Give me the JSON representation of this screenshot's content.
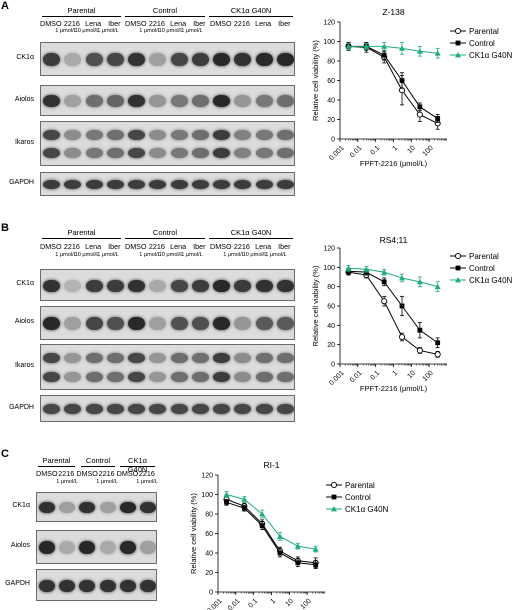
{
  "panels": [
    {
      "letter": "A",
      "groups": [
        "Parental",
        "Control",
        "CK1α G40N"
      ],
      "lanes": [
        "DMSO",
        "2216",
        "Lena",
        "Iber",
        "DMSO",
        "2216",
        "Lena",
        "Iber",
        "DMSO",
        "2216",
        "Lena",
        "Iber"
      ],
      "conc": [
        "1 μmol/L",
        "10 μmol/L",
        "1 μmol/L",
        "1 μmol/L",
        "10 μmol/L",
        "1 μmol/L"
      ],
      "blots": [
        "CK1α",
        "Aiolos",
        "Ikaros",
        "GAPDH"
      ],
      "band_levels": [
        [
          0.85,
          0.3,
          0.75,
          0.8,
          0.9,
          0.35,
          0.8,
          0.85,
          0.95,
          0.9,
          0.95,
          0.95
        ],
        [
          0.9,
          0.35,
          0.6,
          0.65,
          0.9,
          0.4,
          0.55,
          0.6,
          0.95,
          0.4,
          0.55,
          0.6
        ],
        [
          0.8,
          0.45,
          0.55,
          0.6,
          0.8,
          0.45,
          0.55,
          0.6,
          0.85,
          0.5,
          0.55,
          0.6
        ],
        [
          0.85,
          0.85,
          0.85,
          0.85,
          0.85,
          0.85,
          0.85,
          0.85,
          0.85,
          0.85,
          0.85,
          0.85
        ]
      ]
    },
    {
      "letter": "B",
      "groups": [
        "Parental",
        "Control",
        "CK1α G40N"
      ],
      "lanes": [
        "DMSO",
        "2216",
        "Lena",
        "Iber",
        "DMSO",
        "2216",
        "Lena",
        "Iber",
        "DMSO",
        "2216",
        "Lena",
        "Iber"
      ],
      "conc": [
        "1 μmol/L",
        "10 μmol/L",
        "1 μmol/L",
        "1 μmol/L",
        "10 μmol/L",
        "1 μmol/L",
        "1 μmol/L",
        "10 μmol/L",
        "1 μmol/L"
      ],
      "blots": [
        "CK1α",
        "Aiolos",
        "Ikaros",
        "GAPDH"
      ],
      "band_levels": [
        [
          0.9,
          0.25,
          0.85,
          0.85,
          0.9,
          0.3,
          0.8,
          0.85,
          0.95,
          0.85,
          0.9,
          0.9
        ],
        [
          0.95,
          0.35,
          0.8,
          0.75,
          0.95,
          0.35,
          0.75,
          0.75,
          0.95,
          0.4,
          0.7,
          0.7
        ],
        [
          0.8,
          0.4,
          0.6,
          0.6,
          0.8,
          0.4,
          0.6,
          0.6,
          0.85,
          0.45,
          0.6,
          0.6
        ],
        [
          0.8,
          0.8,
          0.8,
          0.8,
          0.8,
          0.8,
          0.8,
          0.8,
          0.8,
          0.8,
          0.8,
          0.8
        ]
      ]
    },
    {
      "letter": "C",
      "groups": [
        "Parental",
        "Control",
        "CK1α G40N"
      ],
      "lanes": [
        "DMSO",
        "2216",
        "DMSO",
        "2216",
        "DMSO",
        "2216"
      ],
      "conc": [
        "1 μmol/L",
        "1 μmol/L",
        "1 μmol/L"
      ],
      "blots": [
        "CK1α",
        "Aiolos",
        "GAPDH"
      ],
      "band_levels": [
        [
          0.9,
          0.35,
          0.9,
          0.35,
          0.95,
          0.9
        ],
        [
          0.95,
          0.3,
          0.95,
          0.3,
          0.95,
          0.35
        ],
        [
          0.9,
          0.9,
          0.9,
          0.9,
          0.9,
          0.9
        ]
      ]
    }
  ],
  "chart_data": [
    {
      "type": "line",
      "title": "Z-138",
      "xlabel": "FPFT-2216 (μmol/L)",
      "ylabel": "Relative cell viability (%)",
      "xscale": "log",
      "x": [
        0.001,
        0.01,
        0.1,
        1,
        10,
        100
      ],
      "x_ticks": [
        "0.001",
        "0.01",
        "0.1",
        "1",
        "10",
        "100"
      ],
      "y_ticks": [
        "0",
        "20",
        "40",
        "60",
        "80",
        "100",
        "120"
      ],
      "ylim": [
        0,
        120
      ],
      "legend_position": "right",
      "points_x": [
        0.003,
        0.03,
        0.3,
        3,
        30,
        300
      ],
      "series": [
        {
          "name": "Parental",
          "marker": "open-circle",
          "color": "#000000",
          "values": [
            95,
            94,
            84,
            50,
            25,
            16
          ],
          "errors": [
            4,
            5,
            6,
            15,
            7,
            6
          ]
        },
        {
          "name": "Control",
          "marker": "filled-square",
          "color": "#000000",
          "values": [
            95,
            95,
            86,
            60,
            33,
            21
          ],
          "errors": [
            3,
            4,
            5,
            8,
            4,
            4
          ]
        },
        {
          "name": "CK1α G40N",
          "marker": "filled-triangle",
          "color": "#1fae7a",
          "values": [
            95,
            95,
            95,
            93,
            90,
            88
          ],
          "errors": [
            3,
            3,
            4,
            6,
            5,
            5
          ]
        }
      ]
    },
    {
      "type": "line",
      "title": "RS4;11",
      "xlabel": "FPFT-2216 (μmol/L)",
      "ylabel": "Relative cell viability (%)",
      "xscale": "log",
      "x": [
        0.001,
        0.01,
        0.1,
        1,
        10,
        100
      ],
      "x_ticks": [
        "0.001",
        "0.01",
        "0.1",
        "1",
        "10",
        "100"
      ],
      "y_ticks": [
        "0",
        "20",
        "40",
        "60",
        "80",
        "100",
        "120"
      ],
      "ylim": [
        0,
        120
      ],
      "legend_position": "right",
      "points_x": [
        0.003,
        0.03,
        0.3,
        3,
        30,
        300
      ],
      "series": [
        {
          "name": "Parental",
          "marker": "open-circle",
          "color": "#000000",
          "values": [
            95,
            92,
            65,
            28,
            14,
            10
          ],
          "errors": [
            3,
            3,
            5,
            4,
            3,
            3
          ]
        },
        {
          "name": "Control",
          "marker": "filled-square",
          "color": "#000000",
          "values": [
            96,
            95,
            85,
            60,
            35,
            22
          ],
          "errors": [
            3,
            3,
            4,
            10,
            8,
            5
          ]
        },
        {
          "name": "CK1α G40N",
          "marker": "filled-triangle",
          "color": "#1fae7a",
          "values": [
            99,
            98,
            95,
            89,
            85,
            80
          ],
          "errors": [
            3,
            3,
            3,
            4,
            5,
            5
          ]
        }
      ]
    },
    {
      "type": "line",
      "title": "RI-1",
      "xlabel": "FPFT-2216 (μmol/L)",
      "ylabel": "Relative cell viability (%)",
      "xscale": "log",
      "x": [
        0.001,
        0.01,
        0.1,
        1,
        10,
        100
      ],
      "x_ticks": [
        "0.001",
        "0.01",
        "0.1",
        "1",
        "10",
        "100"
      ],
      "y_ticks": [
        "0",
        "20",
        "40",
        "60",
        "80",
        "100",
        "120"
      ],
      "ylim": [
        0,
        120
      ],
      "legend_position": "right",
      "points_x": [
        0.003,
        0.03,
        0.3,
        3,
        30,
        300
      ],
      "series": [
        {
          "name": "Parental",
          "marker": "open-circle",
          "color": "#000000",
          "values": [
            95,
            88,
            70,
            42,
            32,
            30
          ],
          "errors": [
            3,
            3,
            4,
            4,
            4,
            5
          ]
        },
        {
          "name": "Control",
          "marker": "filled-square",
          "color": "#000000",
          "values": [
            92,
            86,
            68,
            40,
            30,
            28
          ],
          "errors": [
            3,
            3,
            4,
            4,
            4,
            4
          ]
        },
        {
          "name": "CK1α G40N",
          "marker": "filled-triangle",
          "color": "#1fae7a",
          "values": [
            100,
            95,
            80,
            57,
            47,
            44
          ],
          "errors": [
            3,
            3,
            4,
            4,
            3,
            3
          ]
        }
      ]
    }
  ]
}
